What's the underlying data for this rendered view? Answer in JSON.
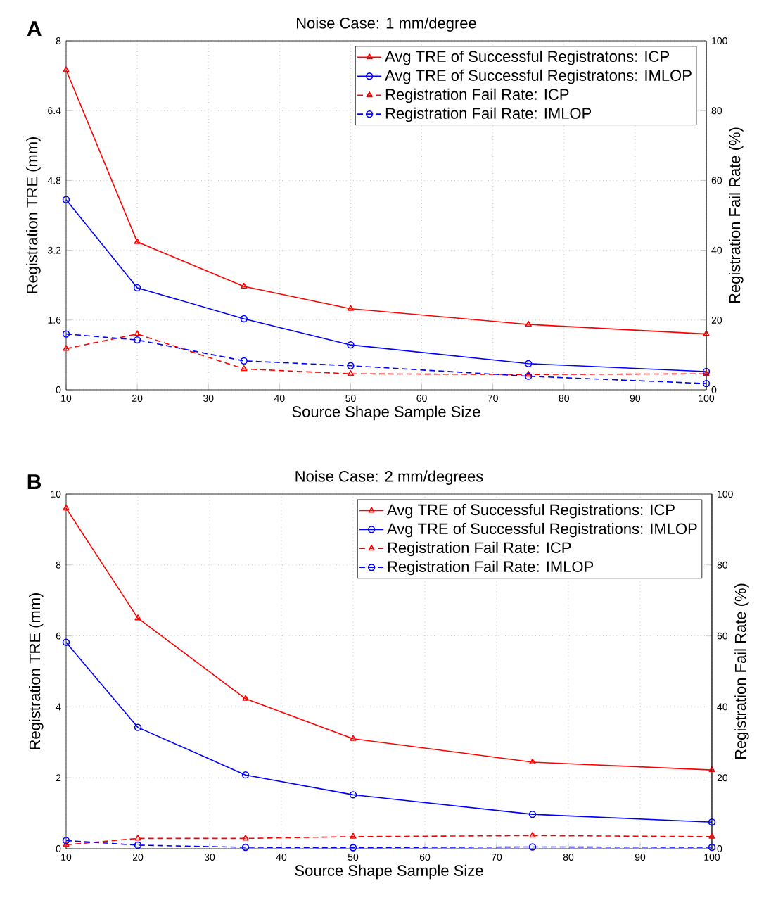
{
  "chart_data": [
    {
      "type": "line",
      "title": "Noise Case: 1 mm/degree",
      "xlabel": "Source Shape Sample Size",
      "ylabel": "Registration TRE (mm)",
      "y2label": "Registration Fail Rate (%)",
      "annotations": [
        "A"
      ],
      "x": [
        10,
        20,
        35,
        50,
        75,
        100
      ],
      "series": [
        {
          "name": "Avg TRE of Successful Registratons: ICP",
          "color": "#ff0000",
          "marker": "triangle",
          "line_style": "solid",
          "values": [
            7.33,
            3.39,
            2.37,
            1.86,
            1.5,
            1.28
          ]
        },
        {
          "name": "Avg TRE of Successful Registratons: IMLOP",
          "color": "#0000ff",
          "marker": "circle",
          "line_style": "solid",
          "values": [
            4.36,
            2.34,
            1.63,
            1.03,
            0.6,
            0.42
          ]
        },
        {
          "name": "Registration Fail Rate: ICP",
          "color": "#ff0000",
          "marker": "triangle",
          "line_style": "dashed",
          "axis": "y2",
          "values": [
            11.8,
            16,
            6,
            4.6,
            4.4,
            4.6
          ]
        },
        {
          "name": "Registration Fail Rate: IMLOP",
          "color": "#0000ff",
          "marker": "circle",
          "line_style": "dashed",
          "axis": "y2",
          "values": [
            16,
            14.3,
            8.3,
            6.9,
            3.9,
            1.8
          ]
        }
      ],
      "xlim": [
        10,
        100
      ],
      "xticks": [
        10,
        20,
        30,
        40,
        50,
        60,
        70,
        80,
        90,
        100
      ],
      "ylim": [
        0,
        8
      ],
      "yticks": [
        0,
        1.6,
        3.2,
        4.8,
        6.4,
        8
      ],
      "y2lim": [
        0,
        100
      ],
      "y2ticks": [
        0,
        20,
        40,
        60,
        80,
        100
      ],
      "grid": true,
      "legend": "top right"
    },
    {
      "type": "line",
      "title": "Noise Case: 2 mm/degrees",
      "xlabel": "Source Shape Sample Size",
      "ylabel": "Registration TRE (mm)",
      "y2label": "Registration Fail Rate (%)",
      "annotations": [
        "B"
      ],
      "x": [
        10,
        20,
        35,
        50,
        75,
        100
      ],
      "series": [
        {
          "name": "Avg TRE of Successful Registrations: ICP",
          "color": "#ff0000",
          "marker": "triangle",
          "line_style": "solid",
          "values": [
            9.6,
            6.5,
            4.23,
            3.1,
            2.44,
            2.22
          ]
        },
        {
          "name": "Avg TRE of Successful Registrations: IMLOP",
          "color": "#0000ff",
          "marker": "circle",
          "line_style": "solid",
          "values": [
            5.82,
            3.42,
            2.08,
            1.52,
            0.97,
            0.75
          ]
        },
        {
          "name": "Registration Fail Rate: ICP",
          "color": "#ff0000",
          "marker": "triangle",
          "line_style": "dashed",
          "axis": "y2",
          "values": [
            1.1,
            2.9,
            2.9,
            3.4,
            3.7,
            3.4
          ]
        },
        {
          "name": "Registration Fail Rate: IMLOP",
          "color": "#0000ff",
          "marker": "circle",
          "line_style": "dashed",
          "axis": "y2",
          "values": [
            2.3,
            1.0,
            0.4,
            0.3,
            0.5,
            0.4
          ]
        }
      ],
      "xlim": [
        10,
        100
      ],
      "xticks": [
        10,
        20,
        30,
        40,
        50,
        60,
        70,
        80,
        90,
        100
      ],
      "ylim": [
        0,
        10
      ],
      "yticks": [
        0,
        2,
        4,
        6,
        8,
        10
      ],
      "y2lim": [
        0,
        100
      ],
      "y2ticks": [
        0,
        20,
        40,
        60,
        80,
        100
      ],
      "grid": true,
      "legend": "top right"
    }
  ]
}
